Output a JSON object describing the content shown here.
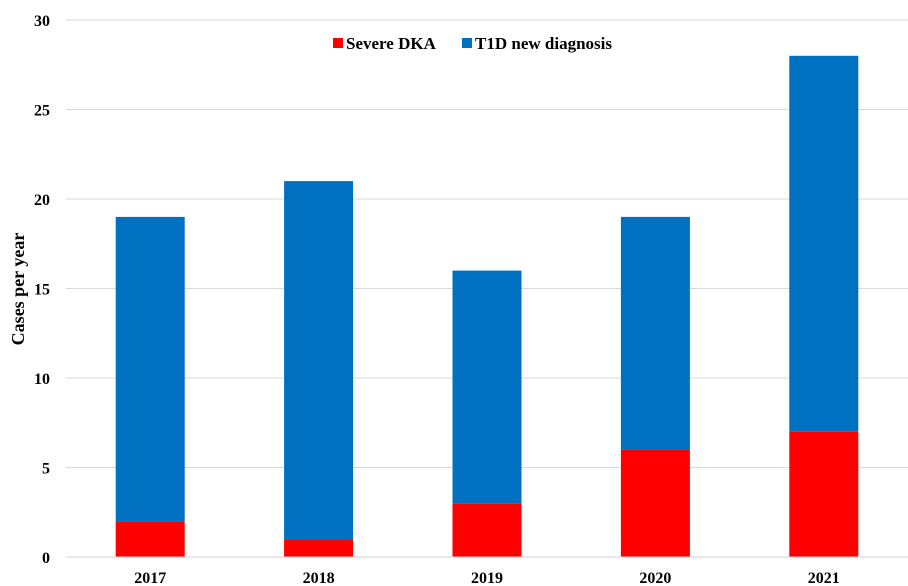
{
  "chart_data": {
    "type": "bar",
    "stacked": true,
    "categories": [
      "2017",
      "2018",
      "2019",
      "2020",
      "2021"
    ],
    "series": [
      {
        "name": "Severe DKA",
        "color": "#ff0000",
        "values": [
          2,
          1,
          3,
          6,
          7
        ]
      },
      {
        "name": "T1D new diagnosis",
        "color": "#0070c0",
        "values": [
          17,
          20,
          13,
          13,
          21
        ]
      }
    ],
    "title": "",
    "xlabel": "",
    "ylabel": "Cases per year",
    "ylim": [
      0,
      30
    ],
    "yticks": [
      "0",
      "5",
      "10",
      "15",
      "20",
      "25",
      "30"
    ],
    "grid": true,
    "legend_position": "top-center"
  }
}
